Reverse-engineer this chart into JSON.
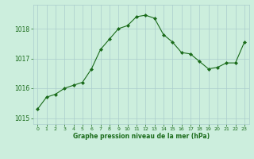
{
  "x": [
    0,
    1,
    2,
    3,
    4,
    5,
    6,
    7,
    8,
    9,
    10,
    11,
    12,
    13,
    14,
    15,
    16,
    17,
    18,
    19,
    20,
    21,
    22,
    23
  ],
  "y": [
    1015.3,
    1015.7,
    1015.8,
    1016.0,
    1016.1,
    1016.2,
    1016.65,
    1017.3,
    1017.65,
    1018.0,
    1018.1,
    1018.4,
    1018.45,
    1018.35,
    1017.8,
    1017.55,
    1017.2,
    1017.15,
    1016.9,
    1016.65,
    1016.7,
    1016.85,
    1016.85,
    1017.55
  ],
  "ylim": [
    1014.8,
    1018.8
  ],
  "yticks": [
    1015,
    1016,
    1017,
    1018
  ],
  "xlim": [
    -0.5,
    23.5
  ],
  "xticks": [
    0,
    1,
    2,
    3,
    4,
    5,
    6,
    7,
    8,
    9,
    10,
    11,
    12,
    13,
    14,
    15,
    16,
    17,
    18,
    19,
    20,
    21,
    22,
    23
  ],
  "line_color": "#1a6b1a",
  "marker_color": "#1a6b1a",
  "bg_color": "#cceedd",
  "grid_color": "#aacccc",
  "xlabel": "Graphe pression niveau de la mer (hPa)",
  "xlabel_color": "#1a6b1a",
  "tick_color": "#1a6b1a",
  "spine_color": "#aacccc",
  "fig_bg": "#cceedd"
}
